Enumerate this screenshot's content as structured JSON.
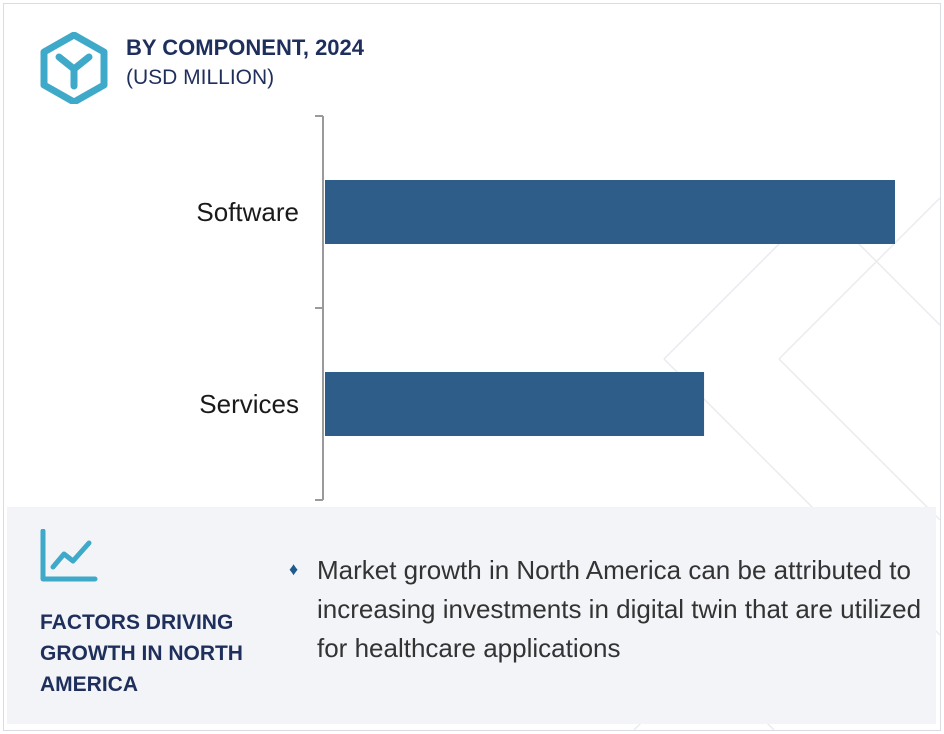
{
  "header": {
    "title": "BY COMPONENT, 2024",
    "subtitle": "(USD MILLION)",
    "logo_icon": "cube-y-logo-icon"
  },
  "colors": {
    "bar": "#2e5d8a",
    "logo": "#3fa9c9",
    "title": "#1f2f5c",
    "factors_bg": "#f3f4f7"
  },
  "chart_data": {
    "type": "bar",
    "orientation": "horizontal",
    "categories": [
      "Software",
      "Services"
    ],
    "values": [
      100,
      66.5
    ],
    "title": "BY COMPONENT, 2024",
    "xlabel": "",
    "ylabel": "",
    "xlim": [
      0,
      100
    ],
    "grid": false,
    "value_axis_visible": false,
    "legend": "none"
  },
  "factors": {
    "icon": "line-chart-icon",
    "title": "FACTORS DRIVING GROWTH IN NORTH AMERICA",
    "bullet_icon": "diamond-bullet-icon",
    "bullet_glyph": "♦",
    "text": "Market growth in North America can be attributed to increasing investments in digital twin that are utilized for healthcare applications"
  }
}
